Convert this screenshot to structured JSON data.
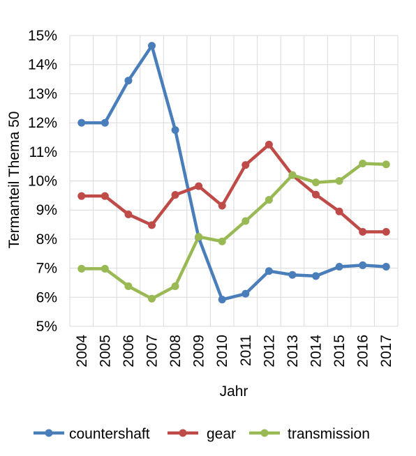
{
  "chart_data": {
    "type": "line",
    "xlabel": "Jahr",
    "ylabel": "Termanteil Thema 50",
    "categories": [
      "2004",
      "2005",
      "2006",
      "2007",
      "2008",
      "2009",
      "2010",
      "2011",
      "2012",
      "2013",
      "2014",
      "2015",
      "2016",
      "2017"
    ],
    "y_ticks": [
      "5%",
      "6%",
      "7%",
      "8%",
      "9%",
      "10%",
      "11%",
      "12%",
      "13%",
      "14%",
      "15%"
    ],
    "ylim": [
      5,
      15
    ],
    "y_unit": "%",
    "grid": "vertical and horizontal major gridlines",
    "legend_position": "bottom",
    "series": [
      {
        "name": "countershaft",
        "color": "#4a7ebb",
        "values": [
          12.0,
          12.0,
          13.45,
          14.65,
          11.75,
          8.05,
          5.92,
          6.12,
          6.9,
          6.77,
          6.73,
          7.05,
          7.1,
          7.05
        ]
      },
      {
        "name": "gear",
        "color": "#be4b48",
        "values": [
          9.48,
          9.48,
          8.85,
          8.48,
          9.52,
          9.82,
          9.15,
          10.55,
          11.25,
          10.2,
          9.53,
          8.95,
          8.25,
          8.25
        ]
      },
      {
        "name": "transmission",
        "color": "#98b954",
        "values": [
          6.98,
          6.98,
          6.38,
          5.95,
          6.38,
          8.08,
          7.92,
          8.62,
          9.35,
          10.2,
          9.95,
          10.0,
          10.6,
          10.57
        ]
      }
    ]
  }
}
